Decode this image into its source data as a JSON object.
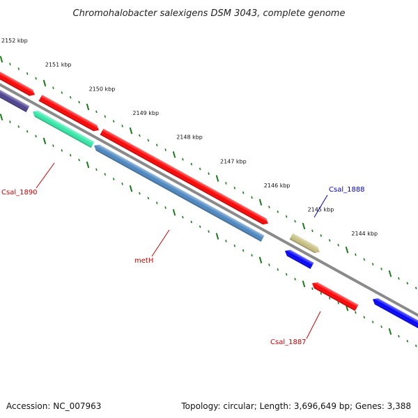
{
  "title": "Chromohalobacter salexigens DSM 3043, complete genome",
  "footer": {
    "accession": "Accession: NC_007963",
    "topology": "Topology: circular; Length: 3,696,649 bp; Genes: 3,388"
  },
  "colors": {
    "backbone": "#8a8a8a",
    "ticks": "#1a7a1a",
    "label_red": "#cc0000",
    "label_blue": "#0000cc"
  },
  "ticks": [
    {
      "kbp": 2152,
      "label": "2152 kbp"
    },
    {
      "kbp": 2151,
      "label": "2151 kbp"
    },
    {
      "kbp": 2150,
      "label": "2150 kbp"
    },
    {
      "kbp": 2149,
      "label": "2149 kbp"
    },
    {
      "kbp": 2148,
      "label": "2148 kbp"
    },
    {
      "kbp": 2147,
      "label": "2147 kbp"
    },
    {
      "kbp": 2146,
      "label": "2146 kbp"
    },
    {
      "kbp": 2145,
      "label": "2145 kbp"
    },
    {
      "kbp": 2144,
      "label": "2144 kbp"
    }
  ],
  "genes": [
    {
      "label": "",
      "color": "#ff0000",
      "strand": "+"
    },
    {
      "label": "",
      "color": "#4b3f8f",
      "strand": "-"
    },
    {
      "label": "",
      "color": "#ff0000",
      "strand": "+"
    },
    {
      "label": "Csal_1890",
      "color": "#33e8a8",
      "strand": "-"
    },
    {
      "label": "",
      "color": "#ff0000",
      "strand": "+"
    },
    {
      "label": "metH",
      "color": "#4a86c0",
      "strand": "-"
    },
    {
      "label": "Csal_1888",
      "color": "#c8c080",
      "strand": "+"
    },
    {
      "label": "",
      "color": "#0000ff",
      "strand": "-"
    },
    {
      "label": "Csal_1887",
      "color": "#ff0000",
      "strand": "-"
    },
    {
      "label": "",
      "color": "#0000ff",
      "strand": "-"
    }
  ]
}
